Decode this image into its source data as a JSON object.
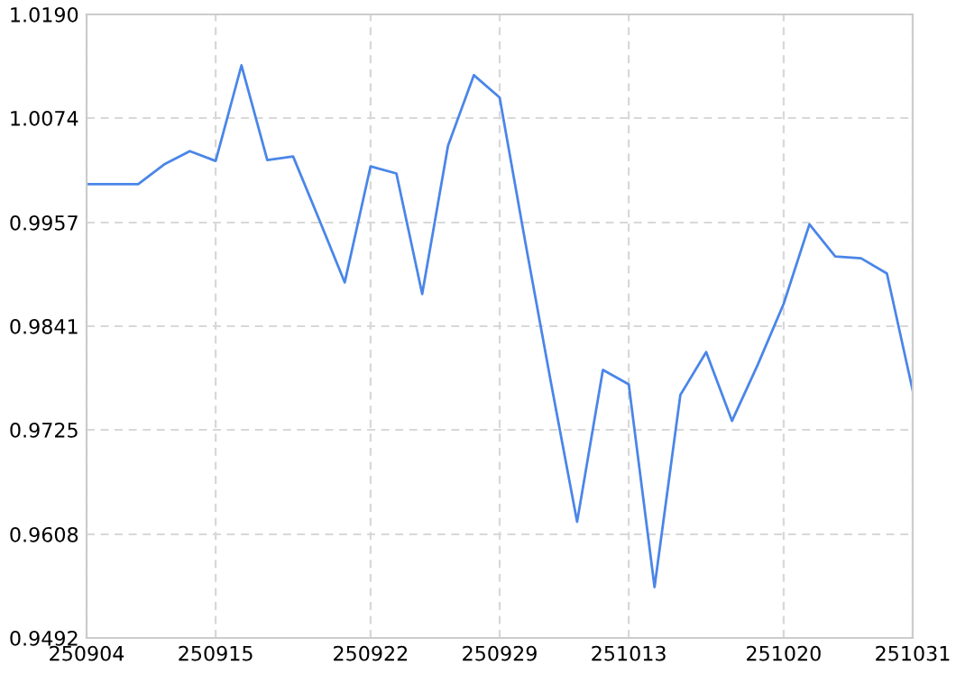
{
  "chart_data": {
    "type": "line",
    "categories": [
      "250904",
      null,
      null,
      null,
      null,
      "250915",
      null,
      null,
      null,
      null,
      null,
      "250922",
      null,
      null,
      null,
      null,
      "250929",
      null,
      null,
      null,
      null,
      "251013",
      null,
      null,
      null,
      null,
      null,
      "251020",
      null,
      null,
      null,
      null,
      "251031"
    ],
    "series": [
      {
        "color": "#4a86e8",
        "values": [
          1.0,
          1.0,
          1.0,
          1.0022,
          1.0037,
          1.0026,
          1.0133,
          1.0027,
          1.0031,
          0.9961,
          0.989,
          1.002,
          1.0012,
          0.9877,
          1.0043,
          1.0122,
          1.0097,
          0.9934,
          0.9776,
          0.9622,
          0.9792,
          0.9776,
          0.9549,
          0.9764,
          0.9812,
          0.9735,
          0.9798,
          0.9866,
          0.9955,
          0.9919,
          0.9917,
          0.99,
          0.9769
        ]
      }
    ],
    "ylim": [
      0.9492,
      1.019
    ],
    "yticks": [
      {
        "value": 0.9492,
        "label": "0.9492"
      },
      {
        "value": 0.9608,
        "label": "0.9608"
      },
      {
        "value": 0.9725,
        "label": "0.9725"
      },
      {
        "value": 0.9841,
        "label": "0.9841"
      },
      {
        "value": 0.9957,
        "label": "0.9957"
      },
      {
        "value": 1.0074,
        "label": "1.0074"
      },
      {
        "value": 1.019,
        "label": "1.0190"
      }
    ],
    "grid": true,
    "marker": "none",
    "line_style": "solid"
  }
}
